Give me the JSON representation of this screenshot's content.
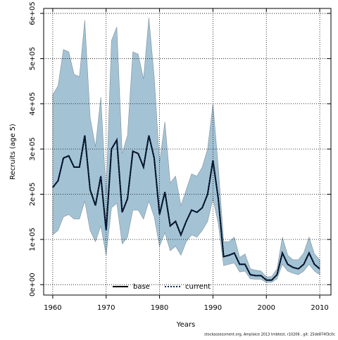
{
  "chart_data": {
    "type": "line",
    "x_label": "Years",
    "y_label": "Recruits (age 5)",
    "footer": "stockassessment.org, Amplaice 2013 tmbtest, r10206 , git: 25de874f3c0c",
    "x": [
      1960,
      1961,
      1962,
      1963,
      1964,
      1965,
      1966,
      1967,
      1968,
      1969,
      1970,
      1971,
      1972,
      1973,
      1974,
      1975,
      1976,
      1977,
      1978,
      1979,
      1980,
      1981,
      1982,
      1983,
      1984,
      1985,
      1986,
      1987,
      1988,
      1989,
      1990,
      1991,
      1992,
      1993,
      1994,
      1995,
      1996,
      1997,
      1998,
      1999,
      2000,
      2001,
      2002,
      2003,
      2004,
      2005,
      2006,
      2007,
      2008,
      2009,
      2010
    ],
    "band": {
      "color": "#a3c3d5",
      "upper": [
        420000,
        440000,
        520000,
        515000,
        465000,
        460000,
        585000,
        370000,
        305000,
        415000,
        200000,
        540000,
        570000,
        290000,
        330000,
        515000,
        510000,
        455000,
        590000,
        460000,
        270000,
        360000,
        225000,
        240000,
        175000,
        210000,
        245000,
        240000,
        260000,
        300000,
        400000,
        260000,
        95000,
        95000,
        105000,
        60000,
        68000,
        35000,
        32000,
        30000,
        17000,
        18000,
        35000,
        105000,
        65000,
        55000,
        55000,
        70000,
        105000,
        68000,
        55000
      ],
      "lower": [
        110000,
        120000,
        150000,
        155000,
        145000,
        145000,
        185000,
        120000,
        95000,
        130000,
        65000,
        170000,
        180000,
        90000,
        105000,
        165000,
        165000,
        145000,
        185000,
        150000,
        85000,
        115000,
        75000,
        85000,
        65000,
        95000,
        110000,
        105000,
        120000,
        140000,
        190000,
        135000,
        42000,
        45000,
        48000,
        28000,
        30000,
        13000,
        12000,
        12000,
        5000,
        5000,
        13000,
        45000,
        30000,
        25000,
        22000,
        30000,
        45000,
        30000,
        22000
      ]
    },
    "series": [
      {
        "name": "base",
        "color": "#000000",
        "style": "solid",
        "values": [
          215000,
          230000,
          280000,
          285000,
          260000,
          260000,
          330000,
          210000,
          175000,
          240000,
          120000,
          300000,
          320000,
          160000,
          190000,
          295000,
          290000,
          260000,
          330000,
          280000,
          155000,
          205000,
          130000,
          140000,
          110000,
          140000,
          165000,
          160000,
          170000,
          200000,
          275000,
          190000,
          62000,
          65000,
          70000,
          45000,
          45000,
          22000,
          20000,
          20000,
          10000,
          10000,
          22000,
          70000,
          45000,
          38000,
          35000,
          45000,
          70000,
          45000,
          35000
        ]
      },
      {
        "name": "current",
        "color": "#0a2a5a",
        "style": "dotted",
        "values": [
          215000,
          230000,
          280000,
          285000,
          260000,
          260000,
          330000,
          210000,
          175000,
          240000,
          120000,
          300000,
          320000,
          160000,
          190000,
          295000,
          290000,
          260000,
          330000,
          280000,
          155000,
          205000,
          130000,
          140000,
          110000,
          140000,
          165000,
          160000,
          170000,
          200000,
          275000,
          190000,
          62000,
          65000,
          70000,
          45000,
          45000,
          22000,
          20000,
          20000,
          10000,
          10000,
          22000,
          70000,
          45000,
          38000,
          35000,
          45000,
          70000,
          45000,
          35000
        ]
      }
    ],
    "xlim": [
      1958.3,
      2012.1
    ],
    "ylim": [
      -23000,
      611000
    ],
    "xticks": [
      1960,
      1970,
      1980,
      1990,
      2000,
      2010
    ],
    "yticks": [
      {
        "value": 0,
        "label": "0e+00"
      },
      {
        "value": 100000,
        "label": "1e+05"
      },
      {
        "value": 200000,
        "label": "2e+05"
      },
      {
        "value": 300000,
        "label": "3e+05"
      },
      {
        "value": 400000,
        "label": "4e+05"
      },
      {
        "value": 500000,
        "label": "5e+05"
      },
      {
        "value": 600000,
        "label": "6e+05"
      }
    ],
    "grid": true,
    "legend": "bottom"
  }
}
